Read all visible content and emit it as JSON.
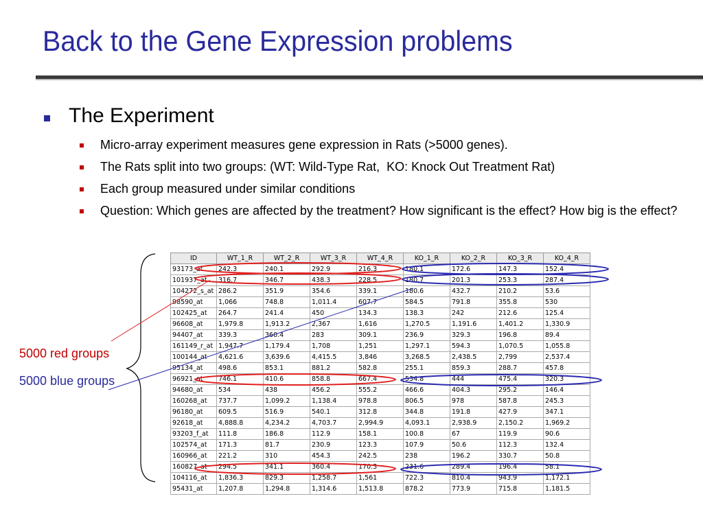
{
  "title": "Back to the Gene Expression problems",
  "section": {
    "heading": "The Experiment",
    "items": [
      "Micro-array experiment measures gene expression in Rats (>5000 genes).",
      "The Rats split into two groups: (WT: Wild-Type Rat,  KO: Knock Out Treatment Rat)",
      "Each group measured under similar conditions",
      "Question: Which genes are affected by the treatment? How significant is the effect? How big is the effect?"
    ]
  },
  "table": {
    "headers": [
      "ID",
      "WT_1_R",
      "WT_2_R",
      "WT_3_R",
      "WT_4_R",
      "KO_1_R",
      "KO_2_R",
      "KO_3_R",
      "KO_4_R"
    ],
    "rows": [
      [
        "93173_at",
        "242.3",
        "240.1",
        "292.9",
        "216.3",
        "180.1",
        "172.6",
        "147.3",
        "152.4"
      ],
      [
        "101937_at",
        "316.7",
        "346.7",
        "438.3",
        "228.5",
        "180.7",
        "201.3",
        "253.3",
        "287.4"
      ],
      [
        "104272_s_at",
        "286.2",
        "351.9",
        "354.6",
        "339.1",
        "180.6",
        "432.7",
        "210.2",
        "53.6"
      ],
      [
        "98590_at",
        "1,066",
        "748.8",
        "1,011.4",
        "607.7",
        "584.5",
        "791.8",
        "355.8",
        "530"
      ],
      [
        "102425_at",
        "264.7",
        "241.4",
        "450",
        "134.3",
        "138.3",
        "242",
        "212.6",
        "125.4"
      ],
      [
        "96608_at",
        "1,979.8",
        "1,913.2",
        "2,367",
        "1,616",
        "1,270.5",
        "1,191.6",
        "1,401.2",
        "1,330.9"
      ],
      [
        "94407_at",
        "339.3",
        "360.4",
        "283",
        "309.1",
        "236.9",
        "329.3",
        "196.8",
        "89.4"
      ],
      [
        "161149_r_at",
        "1,947.7",
        "1,179.4",
        "1,708",
        "1,251",
        "1,297.1",
        "594.3",
        "1,070.5",
        "1,055.8"
      ],
      [
        "100144_at",
        "4,621.6",
        "3,639.6",
        "4,415.5",
        "3,846",
        "3,268.5",
        "2,438.5",
        "2,799",
        "2,537.4"
      ],
      [
        "95134_at",
        "498.6",
        "853.1",
        "881.2",
        "582.8",
        "255.1",
        "859.3",
        "288.7",
        "457.8"
      ],
      [
        "96921_at",
        "746.1",
        "410.6",
        "858.8",
        "667.4",
        "534.8",
        "444",
        "475.4",
        "320.3"
      ],
      [
        "94680_at",
        "534",
        "438",
        "456.2",
        "555.2",
        "466.6",
        "404.3",
        "295.2",
        "146.4"
      ],
      [
        "160268_at",
        "737.7",
        "1,099.2",
        "1,138.4",
        "978.8",
        "806.5",
        "978",
        "587.8",
        "245.3"
      ],
      [
        "96180_at",
        "609.5",
        "516.9",
        "540.1",
        "312.8",
        "344.8",
        "191.8",
        "427.9",
        "347.1"
      ],
      [
        "92618_at",
        "4,888.8",
        "4,234.2",
        "4,703.7",
        "2,994.9",
        "4,093.1",
        "2,938.9",
        "2,150.2",
        "1,969.2"
      ],
      [
        "93203_f_at",
        "111.8",
        "186.8",
        "112.9",
        "158.1",
        "100.8",
        "67",
        "119.9",
        "90.6"
      ],
      [
        "102574_at",
        "171.3",
        "81.7",
        "230.9",
        "123.3",
        "107.9",
        "50.6",
        "112.3",
        "132.4"
      ],
      [
        "160966_at",
        "221.2",
        "310",
        "454.3",
        "242.5",
        "238",
        "196.2",
        "330.7",
        "50.8"
      ],
      [
        "160827_at",
        "294.5",
        "341.1",
        "360.4",
        "170.3",
        "231.6",
        "289.4",
        "196.4",
        "58.1"
      ],
      [
        "104116_at",
        "1,836.3",
        "829.3",
        "1,258.7",
        "1,561",
        "722.3",
        "810.4",
        "943.9",
        "1,172.1"
      ],
      [
        "95431_at",
        "1,207.8",
        "1,294.8",
        "1,314.6",
        "1,513.8",
        "878.2",
        "773.9",
        "715.8",
        "1,181.5"
      ]
    ]
  },
  "labels": {
    "red": "5000 red groups",
    "blue": "5000 blue groups"
  },
  "colors": {
    "title": "#2a2a9c",
    "red_marker": "#e02020",
    "blue_marker": "#2a2ab0"
  }
}
